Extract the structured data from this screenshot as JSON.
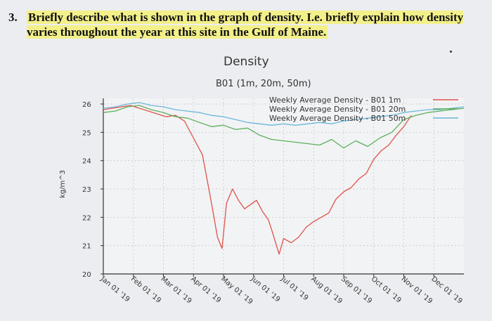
{
  "question": {
    "number": "3.",
    "text": "Briefly describe what is shown in the graph of density. I.e. briefly explain how density varies throughout the year at this site in the Gulf of Maine."
  },
  "chart_data": {
    "type": "line",
    "title": "Density",
    "subtitle": "B01 (1m, 20m, 50m)",
    "ylabel": "kg/m^3",
    "xlabel": "",
    "ylim": [
      20,
      26.2
    ],
    "yticks": [
      20,
      21,
      22,
      23,
      24,
      25,
      26
    ],
    "xlim": [
      0,
      12
    ],
    "xticks": [
      "Jan 01 '19",
      "Feb 01 '19",
      "Mar 01 '19",
      "Apr 01 '19",
      "May 01 '19",
      "Jun 01 '19",
      "Jul 01 '19",
      "Aug 01 '19",
      "Sep 01 '19",
      "Oct 01 '19",
      "Nov 01 '19",
      "Dec 01 '19"
    ],
    "grid": true,
    "legend_position": "top-right",
    "series": [
      {
        "name": "Weekly Average Density  - B01 1m",
        "color": "#e0524a",
        "x": [
          0,
          0.3,
          0.6,
          0.9,
          1.2,
          1.5,
          1.8,
          2.1,
          2.4,
          2.7,
          3.0,
          3.3,
          3.6,
          3.8,
          3.95,
          4.1,
          4.3,
          4.5,
          4.7,
          4.9,
          5.1,
          5.3,
          5.5,
          5.65,
          5.85,
          6.0,
          6.25,
          6.5,
          6.75,
          7.0,
          7.25,
          7.5,
          7.75,
          8.0,
          8.25,
          8.5,
          8.75,
          9.0,
          9.25,
          9.5,
          9.75,
          10.0,
          10.25
        ],
        "values": [
          25.8,
          25.85,
          25.9,
          25.95,
          25.85,
          25.75,
          25.65,
          25.55,
          25.6,
          25.4,
          24.8,
          24.2,
          22.5,
          21.3,
          20.9,
          22.5,
          23.0,
          22.6,
          22.3,
          22.45,
          22.6,
          22.2,
          21.9,
          21.4,
          20.7,
          21.25,
          21.1,
          21.3,
          21.65,
          21.85,
          22.0,
          22.15,
          22.65,
          22.9,
          23.05,
          23.35,
          23.55,
          24.05,
          24.35,
          24.55,
          24.9,
          25.2,
          25.6
        ]
      },
      {
        "name": "Weekly Average Density  - B01 20m",
        "color": "#5bb05b",
        "x": [
          0,
          0.4,
          0.8,
          1.2,
          1.6,
          2.0,
          2.4,
          2.8,
          3.2,
          3.6,
          4.0,
          4.4,
          4.8,
          5.2,
          5.6,
          6.0,
          6.4,
          6.8,
          7.2,
          7.6,
          8.0,
          8.4,
          8.8,
          9.2,
          9.6,
          10.0,
          10.4,
          10.8,
          11.2,
          11.6,
          12.0
        ],
        "values": [
          25.7,
          25.75,
          25.9,
          25.95,
          25.8,
          25.7,
          25.55,
          25.5,
          25.35,
          25.2,
          25.25,
          25.1,
          25.15,
          24.9,
          24.75,
          24.7,
          24.65,
          24.6,
          24.55,
          24.75,
          24.45,
          24.7,
          24.5,
          24.8,
          25.0,
          25.45,
          25.6,
          25.7,
          25.75,
          25.8,
          25.85
        ]
      },
      {
        "name": "Weekly Average Density  - B01 50m",
        "color": "#6ab8d9",
        "x": [
          0,
          0.4,
          0.8,
          1.2,
          1.6,
          2.0,
          2.4,
          2.8,
          3.2,
          3.6,
          4.0,
          4.4,
          4.8,
          5.2,
          5.6,
          6.0,
          6.4,
          6.8,
          7.2,
          7.6,
          8.0,
          8.4,
          8.8,
          9.2,
          9.6,
          10.0,
          10.4,
          10.8,
          11.2,
          11.6,
          12.0
        ],
        "values": [
          25.85,
          25.9,
          26.0,
          26.05,
          25.95,
          25.9,
          25.8,
          25.75,
          25.7,
          25.6,
          25.55,
          25.45,
          25.35,
          25.3,
          25.25,
          25.3,
          25.25,
          25.3,
          25.35,
          25.3,
          25.4,
          25.45,
          25.5,
          25.55,
          25.6,
          25.7,
          25.75,
          25.8,
          25.8,
          25.85,
          25.9
        ]
      }
    ]
  }
}
